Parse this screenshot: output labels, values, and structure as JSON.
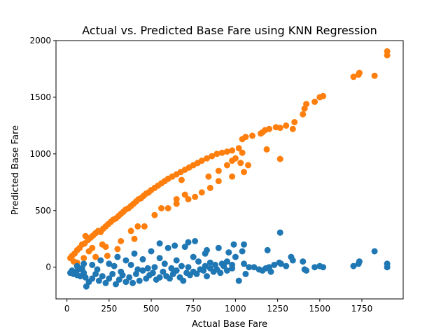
{
  "chart_data": {
    "type": "scatter",
    "title": "Actual vs. Predicted Base Fare using KNN Regression",
    "xlabel": "Actual Base Fare",
    "ylabel": "Predicted Base Fare",
    "xlim": [
      -65,
      1995
    ],
    "ylim": [
      -280,
      2000
    ],
    "x_ticks": [
      0,
      250,
      500,
      750,
      1000,
      1250,
      1500,
      1750
    ],
    "y_ticks": [
      0,
      500,
      1000,
      1500,
      2000
    ],
    "grid": false,
    "legend": "none",
    "series": [
      {
        "color": "#ff7f0e",
        "points": [
          [
            20,
            80
          ],
          [
            30,
            100
          ],
          [
            45,
            120
          ],
          [
            60,
            150
          ],
          [
            75,
            170
          ],
          [
            90,
            200
          ],
          [
            105,
            210
          ],
          [
            110,
            275
          ],
          [
            125,
            240
          ],
          [
            140,
            260
          ],
          [
            155,
            280
          ],
          [
            170,
            300
          ],
          [
            185,
            320
          ],
          [
            200,
            310
          ],
          [
            215,
            340
          ],
          [
            230,
            360
          ],
          [
            245,
            380
          ],
          [
            260,
            400
          ],
          [
            275,
            420
          ],
          [
            290,
            430
          ],
          [
            305,
            450
          ],
          [
            320,
            470
          ],
          [
            335,
            490
          ],
          [
            350,
            510
          ],
          [
            365,
            520
          ],
          [
            380,
            540
          ],
          [
            395,
            560
          ],
          [
            410,
            580
          ],
          [
            425,
            600
          ],
          [
            440,
            610
          ],
          [
            455,
            630
          ],
          [
            470,
            650
          ],
          [
            485,
            660
          ],
          [
            500,
            680
          ],
          [
            520,
            700
          ],
          [
            540,
            720
          ],
          [
            560,
            740
          ],
          [
            580,
            760
          ],
          [
            600,
            780
          ],
          [
            625,
            800
          ],
          [
            650,
            820
          ],
          [
            675,
            840
          ],
          [
            700,
            860
          ],
          [
            725,
            880
          ],
          [
            750,
            900
          ],
          [
            775,
            920
          ],
          [
            800,
            940
          ],
          [
            830,
            960
          ],
          [
            860,
            980
          ],
          [
            890,
            1000
          ],
          [
            920,
            1010
          ],
          [
            950,
            1020
          ],
          [
            980,
            1030
          ],
          [
            1020,
            1050
          ],
          [
            1040,
            1130
          ],
          [
            1060,
            1150
          ],
          [
            1100,
            1160
          ],
          [
            1150,
            1180
          ],
          [
            1160,
            1190
          ],
          [
            1175,
            1210
          ],
          [
            1200,
            1220
          ],
          [
            1240,
            1235
          ],
          [
            1265,
            1230
          ],
          [
            1300,
            1250
          ],
          [
            1340,
            1220
          ],
          [
            1350,
            1280
          ],
          [
            1400,
            1350
          ],
          [
            1410,
            1400
          ],
          [
            1420,
            1440
          ],
          [
            1470,
            1460
          ],
          [
            1500,
            1500
          ],
          [
            1520,
            1510
          ],
          [
            1700,
            1680
          ],
          [
            1730,
            1700
          ],
          [
            1735,
            1715
          ],
          [
            1825,
            1690
          ],
          [
            1900,
            1870
          ],
          [
            1900,
            1905
          ],
          [
            130,
            140
          ],
          [
            210,
            200
          ],
          [
            380,
            320
          ],
          [
            520,
            460
          ],
          [
            600,
            520
          ],
          [
            650,
            560
          ],
          [
            720,
            600
          ],
          [
            760,
            620
          ],
          [
            800,
            660
          ],
          [
            850,
            700
          ],
          [
            900,
            760
          ],
          [
            980,
            800
          ],
          [
            1050,
            840
          ],
          [
            1075,
            900
          ],
          [
            1185,
            1040
          ],
          [
            1265,
            955
          ],
          [
            980,
            940
          ],
          [
            1030,
            920
          ],
          [
            680,
            770
          ],
          [
            460,
            360
          ],
          [
            320,
            230
          ],
          [
            230,
            180
          ],
          [
            170,
            90
          ],
          [
            240,
            100
          ],
          [
            300,
            160
          ],
          [
            420,
            360
          ],
          [
            560,
            520
          ],
          [
            700,
            640
          ],
          [
            840,
            800
          ],
          [
            900,
            850
          ],
          [
            950,
            900
          ],
          [
            1000,
            960
          ],
          [
            1040,
            1010
          ],
          [
            650,
            600
          ],
          [
            400,
            250
          ],
          [
            150,
            170
          ],
          [
            100,
            80
          ],
          [
            60,
            40
          ],
          [
            40,
            50
          ]
        ]
      },
      {
        "color": "#1f77b4",
        "points": [
          [
            20,
            -50
          ],
          [
            30,
            -30
          ],
          [
            40,
            -60
          ],
          [
            50,
            -40
          ],
          [
            60,
            -70
          ],
          [
            70,
            -20
          ],
          [
            80,
            -80
          ],
          [
            90,
            -10
          ],
          [
            100,
            -50
          ],
          [
            110,
            -90
          ],
          [
            115,
            -170
          ],
          [
            130,
            -130
          ],
          [
            150,
            -100
          ],
          [
            170,
            -60
          ],
          [
            190,
            -120
          ],
          [
            210,
            -80
          ],
          [
            230,
            -140
          ],
          [
            250,
            -100
          ],
          [
            270,
            -60
          ],
          [
            290,
            -150
          ],
          [
            310,
            -110
          ],
          [
            330,
            -70
          ],
          [
            350,
            -130
          ],
          [
            370,
            -90
          ],
          [
            390,
            -140
          ],
          [
            410,
            -60
          ],
          [
            430,
            -120
          ],
          [
            450,
            -30
          ],
          [
            470,
            -100
          ],
          [
            490,
            -70
          ],
          [
            510,
            -50
          ],
          [
            530,
            -110
          ],
          [
            550,
            -90
          ],
          [
            570,
            -40
          ],
          [
            590,
            -80
          ],
          [
            610,
            -100
          ],
          [
            630,
            -60
          ],
          [
            650,
            -30
          ],
          [
            670,
            -90
          ],
          [
            690,
            -120
          ],
          [
            710,
            -50
          ],
          [
            730,
            -70
          ],
          [
            750,
            -40
          ],
          [
            770,
            -60
          ],
          [
            790,
            -20
          ],
          [
            810,
            -30
          ],
          [
            830,
            -80
          ],
          [
            850,
            -10
          ],
          [
            870,
            -40
          ],
          [
            890,
            -20
          ],
          [
            910,
            -50
          ],
          [
            930,
            10
          ],
          [
            950,
            -30
          ],
          [
            980,
            20
          ],
          [
            1020,
            -120
          ],
          [
            1050,
            30
          ],
          [
            1060,
            -60
          ],
          [
            1110,
            0
          ],
          [
            1140,
            -20
          ],
          [
            1160,
            -30
          ],
          [
            1180,
            -10
          ],
          [
            1200,
            0
          ],
          [
            1210,
            -40
          ],
          [
            1230,
            20
          ],
          [
            1260,
            40
          ],
          [
            1265,
            305
          ],
          [
            1300,
            10
          ],
          [
            1330,
            90
          ],
          [
            1340,
            60
          ],
          [
            1400,
            50
          ],
          [
            1410,
            -20
          ],
          [
            1420,
            -30
          ],
          [
            1470,
            0
          ],
          [
            1500,
            10
          ],
          [
            1520,
            0
          ],
          [
            1700,
            10
          ],
          [
            1730,
            30
          ],
          [
            1735,
            50
          ],
          [
            1825,
            140
          ],
          [
            1900,
            30
          ],
          [
            1900,
            0
          ],
          [
            100,
            30
          ],
          [
            200,
            60
          ],
          [
            300,
            90
          ],
          [
            400,
            120
          ],
          [
            500,
            140
          ],
          [
            550,
            210
          ],
          [
            600,
            170
          ],
          [
            640,
            190
          ],
          [
            700,
            180
          ],
          [
            720,
            220
          ],
          [
            760,
            230
          ],
          [
            820,
            120
          ],
          [
            830,
            150
          ],
          [
            900,
            170
          ],
          [
            960,
            130
          ],
          [
            990,
            200
          ],
          [
            1040,
            140
          ],
          [
            1050,
            200
          ],
          [
            1190,
            150
          ],
          [
            1270,
            30
          ],
          [
            150,
            20
          ],
          [
            250,
            30
          ],
          [
            350,
            60
          ],
          [
            450,
            70
          ],
          [
            550,
            80
          ],
          [
            650,
            60
          ],
          [
            750,
            90
          ],
          [
            850,
            40
          ],
          [
            950,
            50
          ],
          [
            1000,
            90
          ],
          [
            60,
            10
          ],
          [
            180,
            -20
          ],
          [
            280,
            10
          ],
          [
            380,
            20
          ],
          [
            480,
            -10
          ],
          [
            580,
            30
          ],
          [
            680,
            10
          ],
          [
            780,
            50
          ],
          [
            880,
            20
          ],
          [
            980,
            -10
          ],
          [
            1080,
            0
          ],
          [
            320,
            -40
          ],
          [
            420,
            -20
          ],
          [
            520,
            0
          ],
          [
            620,
            -10
          ],
          [
            720,
            0
          ],
          [
            820,
            10
          ],
          [
            920,
            30
          ]
        ]
      }
    ]
  }
}
